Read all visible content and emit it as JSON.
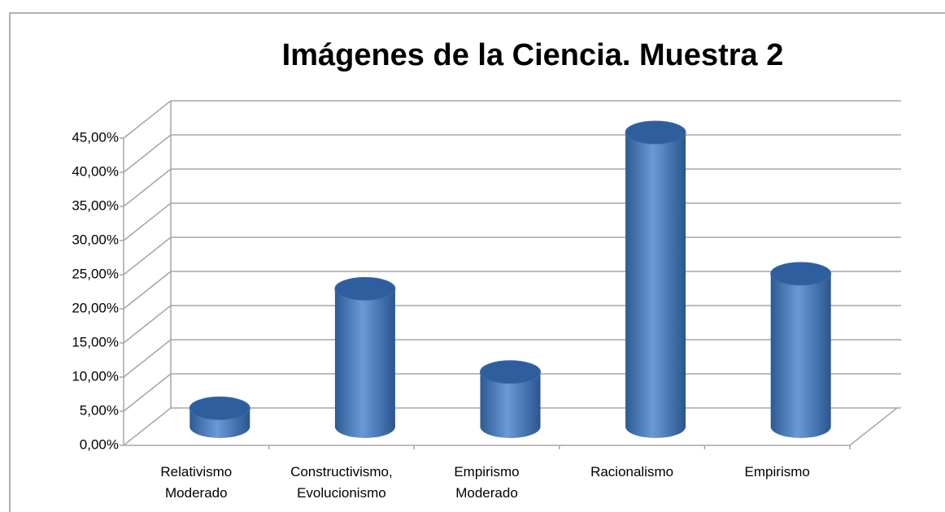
{
  "chart_data": {
    "type": "bar3d",
    "title": "Imágenes de la Ciencia. Muestra 2",
    "categories": [
      "Relativismo Moderado",
      "Constructivismo, Evolucionismo",
      "Empirismo Moderado",
      "Racionalismo",
      "Empirismo"
    ],
    "values": [
      2.7,
      20.2,
      8,
      43.1,
      22.4
    ],
    "color": "#4f81bd",
    "ylim": [
      0,
      45
    ],
    "yticks": [
      {
        "value": 0,
        "label": "0,00%"
      },
      {
        "value": 5,
        "label": "5,00%"
      },
      {
        "value": 10,
        "label": "10,00%"
      },
      {
        "value": 15,
        "label": "15,00%"
      },
      {
        "value": 20,
        "label": "20,00%"
      },
      {
        "value": 25,
        "label": "25,00%"
      },
      {
        "value": 30,
        "label": "30,00%"
      },
      {
        "value": 35,
        "label": "35,00%"
      },
      {
        "value": 40,
        "label": "40,00%"
      },
      {
        "value": 45,
        "label": "45,00%"
      }
    ],
    "grid": true
  }
}
